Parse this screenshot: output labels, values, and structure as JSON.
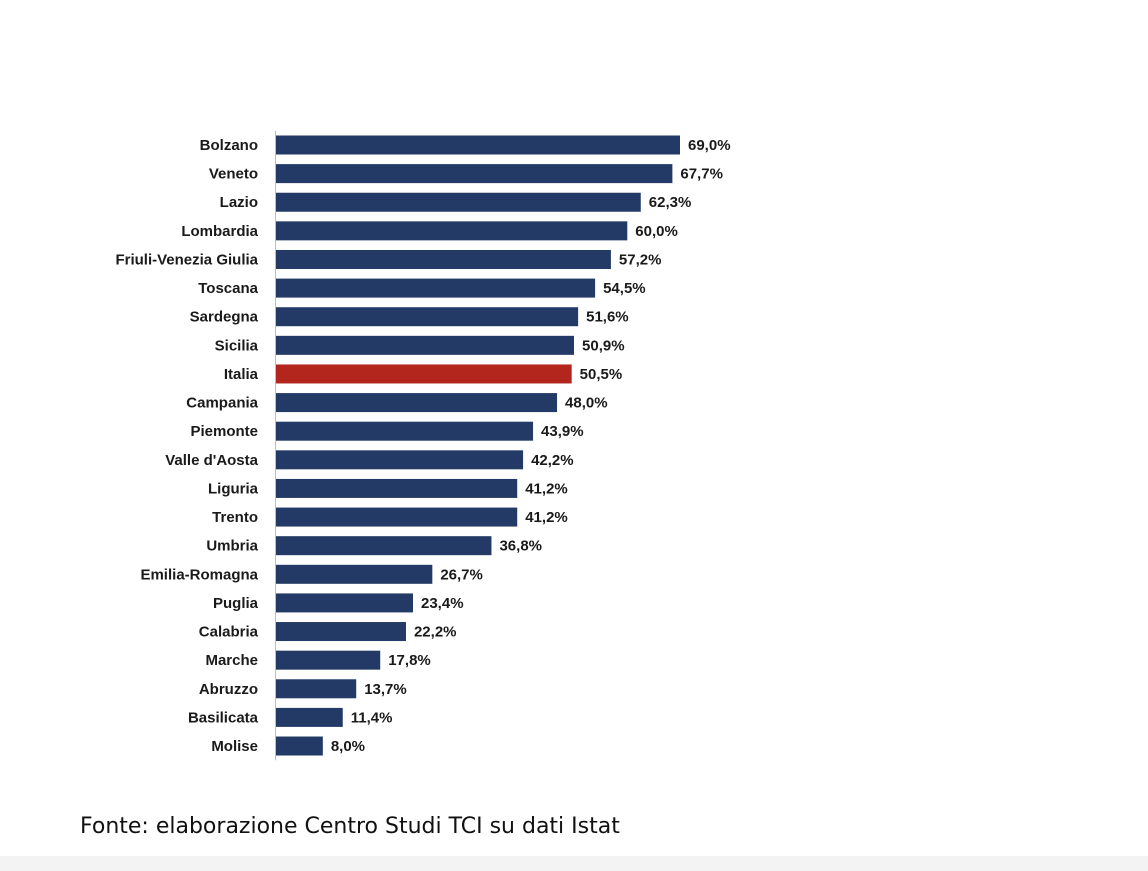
{
  "source_note": "Fonte: elaborazione Centro Studi TCI su dati Istat",
  "colors": {
    "default_bar": "#233a66",
    "highlight_bar": "#b3261e",
    "axis": "#bfbfbf",
    "text": "#1a1a1a"
  },
  "chart_data": {
    "type": "bar",
    "orientation": "horizontal",
    "categories": [
      "Bolzano",
      "Veneto",
      "Lazio",
      "Lombardia",
      "Friuli-Venezia Giulia",
      "Toscana",
      "Sardegna",
      "Sicilia",
      "Italia",
      "Campania",
      "Piemonte",
      "Valle d'Aosta",
      "Liguria",
      "Trento",
      "Umbria",
      "Emilia-Romagna",
      "Puglia",
      "Calabria",
      "Marche",
      "Abruzzo",
      "Basilicata",
      "Molise"
    ],
    "values": [
      69.0,
      67.7,
      62.3,
      60.0,
      57.2,
      54.5,
      51.6,
      50.9,
      50.5,
      48.0,
      43.9,
      42.2,
      41.2,
      41.2,
      36.8,
      26.7,
      23.4,
      22.2,
      17.8,
      13.7,
      11.4,
      8.0
    ],
    "value_labels": [
      "69,0%",
      "67,7%",
      "62,3%",
      "60,0%",
      "57,2%",
      "54,5%",
      "51,6%",
      "50,9%",
      "50,5%",
      "48,0%",
      "43,9%",
      "42,2%",
      "41,2%",
      "41,2%",
      "36,8%",
      "26,7%",
      "23,4%",
      "22,2%",
      "17,8%",
      "13,7%",
      "11,4%",
      "8,0%"
    ],
    "highlight_category": "Italia",
    "xlim": [
      0,
      69.0
    ],
    "grid": false,
    "legend": "none"
  }
}
